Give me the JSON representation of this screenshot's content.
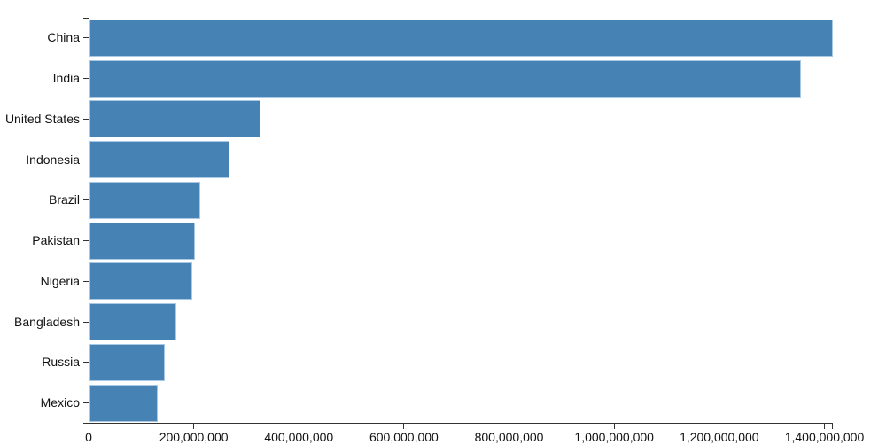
{
  "page": {
    "background_color": "#ffffff"
  },
  "chart_data": {
    "type": "bar",
    "orientation": "horizontal",
    "title": "",
    "xlabel": "",
    "ylabel": "",
    "grid": false,
    "legend": false,
    "categories": [
      "China",
      "India",
      "United States",
      "Indonesia",
      "Brazil",
      "Pakistan",
      "Nigeria",
      "Bangladesh",
      "Russia",
      "Mexico"
    ],
    "values": [
      1415045928,
      1354051854,
      326766748,
      266794980,
      210867954,
      200813818,
      195875237,
      166368149,
      143964709,
      130759074
    ],
    "xlim": [
      0,
      1415045928
    ],
    "x_ticks": [
      0,
      200000000,
      400000000,
      600000000,
      800000000,
      1000000000,
      1200000000,
      1400000000
    ],
    "x_tick_labels": [
      "0",
      "200,000,000",
      "400,000,000",
      "600,000,000",
      "800,000,000",
      "1,000,000,000",
      "1,200,000,000",
      "1,400,000,000"
    ],
    "bar_color": "#4682b4",
    "bar_border_color": "#a9c8e3",
    "axis_color": "#333333",
    "text_color": "#111111"
  }
}
